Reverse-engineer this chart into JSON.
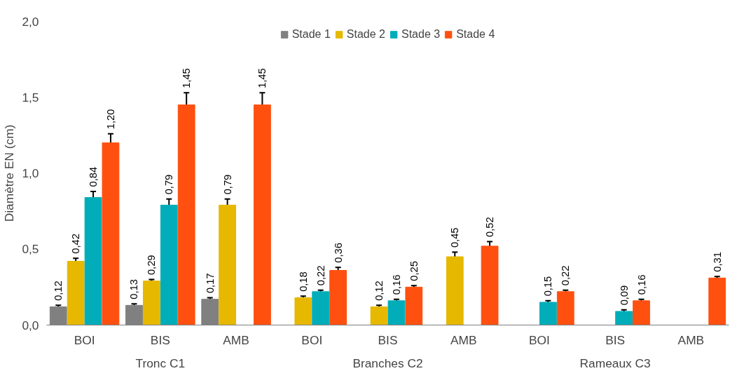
{
  "chart_data": {
    "type": "bar",
    "ylabel": "Diamètre EN (cm)",
    "categories": [
      "BOI",
      "BIS",
      "AMB",
      "BOI",
      "BIS",
      "AMB",
      "BOI",
      "BIS",
      "AMB"
    ],
    "annotations": [
      "Tronc C1",
      "Branches C2",
      "Rameaux C3"
    ],
    "series": [
      {
        "name": "Stade 1",
        "color": "#808080",
        "values": [
          0.12,
          0.13,
          0.17,
          null,
          null,
          null,
          null,
          null,
          null
        ],
        "errors": [
          0.01,
          0.01,
          0.01,
          null,
          null,
          null,
          null,
          null,
          null
        ],
        "value_labels": [
          "0,12",
          "0,13",
          "0,17",
          null,
          null,
          null,
          null,
          null,
          null
        ]
      },
      {
        "name": "Stade 2",
        "color": "#e6b800",
        "values": [
          0.42,
          0.29,
          0.79,
          0.18,
          0.12,
          0.45,
          null,
          null,
          null
        ],
        "errors": [
          0.02,
          0.01,
          0.04,
          0.01,
          0.01,
          0.03,
          null,
          null,
          null
        ],
        "value_labels": [
          "0,42",
          "0,29",
          "0,79",
          "0,18",
          "0,12",
          "0,45",
          null,
          null,
          null
        ]
      },
      {
        "name": "Stade 3",
        "color": "#00adb9",
        "values": [
          0.84,
          0.79,
          null,
          0.22,
          0.16,
          null,
          0.15,
          0.09,
          null
        ],
        "errors": [
          0.04,
          0.04,
          null,
          0.01,
          0.01,
          null,
          0.01,
          0.01,
          null
        ],
        "value_labels": [
          "0,84",
          "0,79",
          null,
          "0,22",
          "0,16",
          null,
          "0,15",
          "0,09",
          null
        ]
      },
      {
        "name": "Stade 4",
        "color": "#ff5010",
        "values": [
          1.2,
          1.45,
          1.45,
          0.36,
          0.25,
          0.52,
          0.22,
          0.16,
          0.31
        ],
        "errors": [
          0.06,
          0.08,
          0.08,
          0.02,
          0.01,
          0.03,
          0.01,
          0.01,
          0.01
        ],
        "value_labels": [
          "1,20",
          "1,45",
          "1,45",
          "0,36",
          "0,25",
          "0,52",
          "0,22",
          "0,16",
          "0,31"
        ]
      }
    ],
    "ylim": [
      0,
      2
    ],
    "yticks": [
      {
        "value": 0,
        "label": "0,0"
      },
      {
        "value": 0.5,
        "label": "0,5"
      },
      {
        "value": 1,
        "label": "1,0"
      },
      {
        "value": 1.5,
        "label": "1,5"
      },
      {
        "value": 2,
        "label": "2,0"
      }
    ],
    "grid": false,
    "legend": "top"
  }
}
